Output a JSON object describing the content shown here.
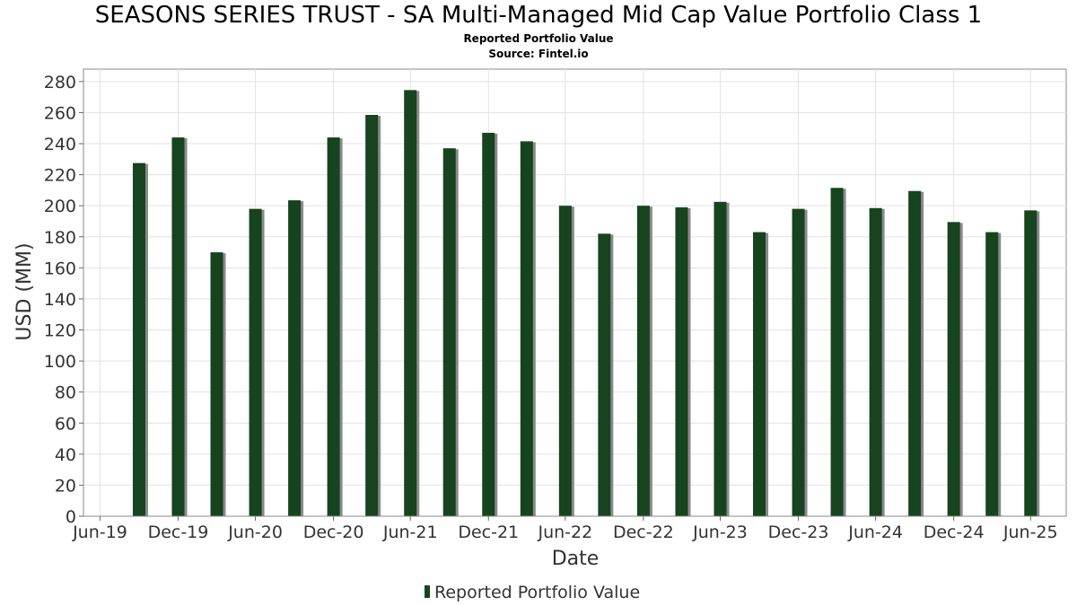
{
  "chart_data": {
    "type": "bar",
    "title": "SEASONS SERIES TRUST - SA Multi-Managed Mid Cap Value Portfolio Class 1",
    "subtitle": "Reported Portfolio Value",
    "source": "Source: Fintel.io",
    "xlabel": "Date",
    "ylabel": "USD (MM)",
    "ylim": [
      0,
      288
    ],
    "yticks": [
      0,
      20,
      40,
      60,
      80,
      100,
      120,
      140,
      160,
      180,
      200,
      220,
      240,
      260,
      280
    ],
    "xlim": [
      "2019-05-22",
      "2025-09-22"
    ],
    "xticks": [
      {
        "date": "2019-06-30",
        "label": "Jun-19"
      },
      {
        "date": "2019-12-31",
        "label": "Dec-19"
      },
      {
        "date": "2020-06-30",
        "label": "Jun-20"
      },
      {
        "date": "2020-12-31",
        "label": "Dec-20"
      },
      {
        "date": "2021-06-30",
        "label": "Jun-21"
      },
      {
        "date": "2021-12-31",
        "label": "Dec-21"
      },
      {
        "date": "2022-06-30",
        "label": "Jun-22"
      },
      {
        "date": "2022-12-31",
        "label": "Dec-22"
      },
      {
        "date": "2023-06-30",
        "label": "Jun-23"
      },
      {
        "date": "2023-12-31",
        "label": "Dec-23"
      },
      {
        "date": "2024-06-30",
        "label": "Jun-24"
      },
      {
        "date": "2024-12-31",
        "label": "Dec-24"
      },
      {
        "date": "2025-06-30",
        "label": "Jun-25"
      }
    ],
    "grid": true,
    "legend": "bottom-center",
    "series": [
      {
        "name": "Reported Portfolio Value",
        "color": "#17431f",
        "shadow_color": "#8a8a8a",
        "x": [
          "2019-09-30",
          "2019-12-31",
          "2020-03-31",
          "2020-06-30",
          "2020-09-30",
          "2020-12-31",
          "2021-03-31",
          "2021-06-30",
          "2021-09-30",
          "2021-12-31",
          "2022-03-31",
          "2022-06-30",
          "2022-09-30",
          "2022-12-31",
          "2023-03-31",
          "2023-06-30",
          "2023-09-30",
          "2023-12-31",
          "2024-03-31",
          "2024-06-30",
          "2024-09-30",
          "2024-12-31",
          "2025-03-31",
          "2025-06-30"
        ],
        "values": [
          227.5,
          244,
          170,
          198,
          203.5,
          244,
          258.5,
          274.5,
          237,
          247,
          241.5,
          200,
          182,
          200,
          199,
          202.5,
          183,
          198,
          211.5,
          198.5,
          209.5,
          189.5,
          183,
          197
        ]
      }
    ]
  }
}
